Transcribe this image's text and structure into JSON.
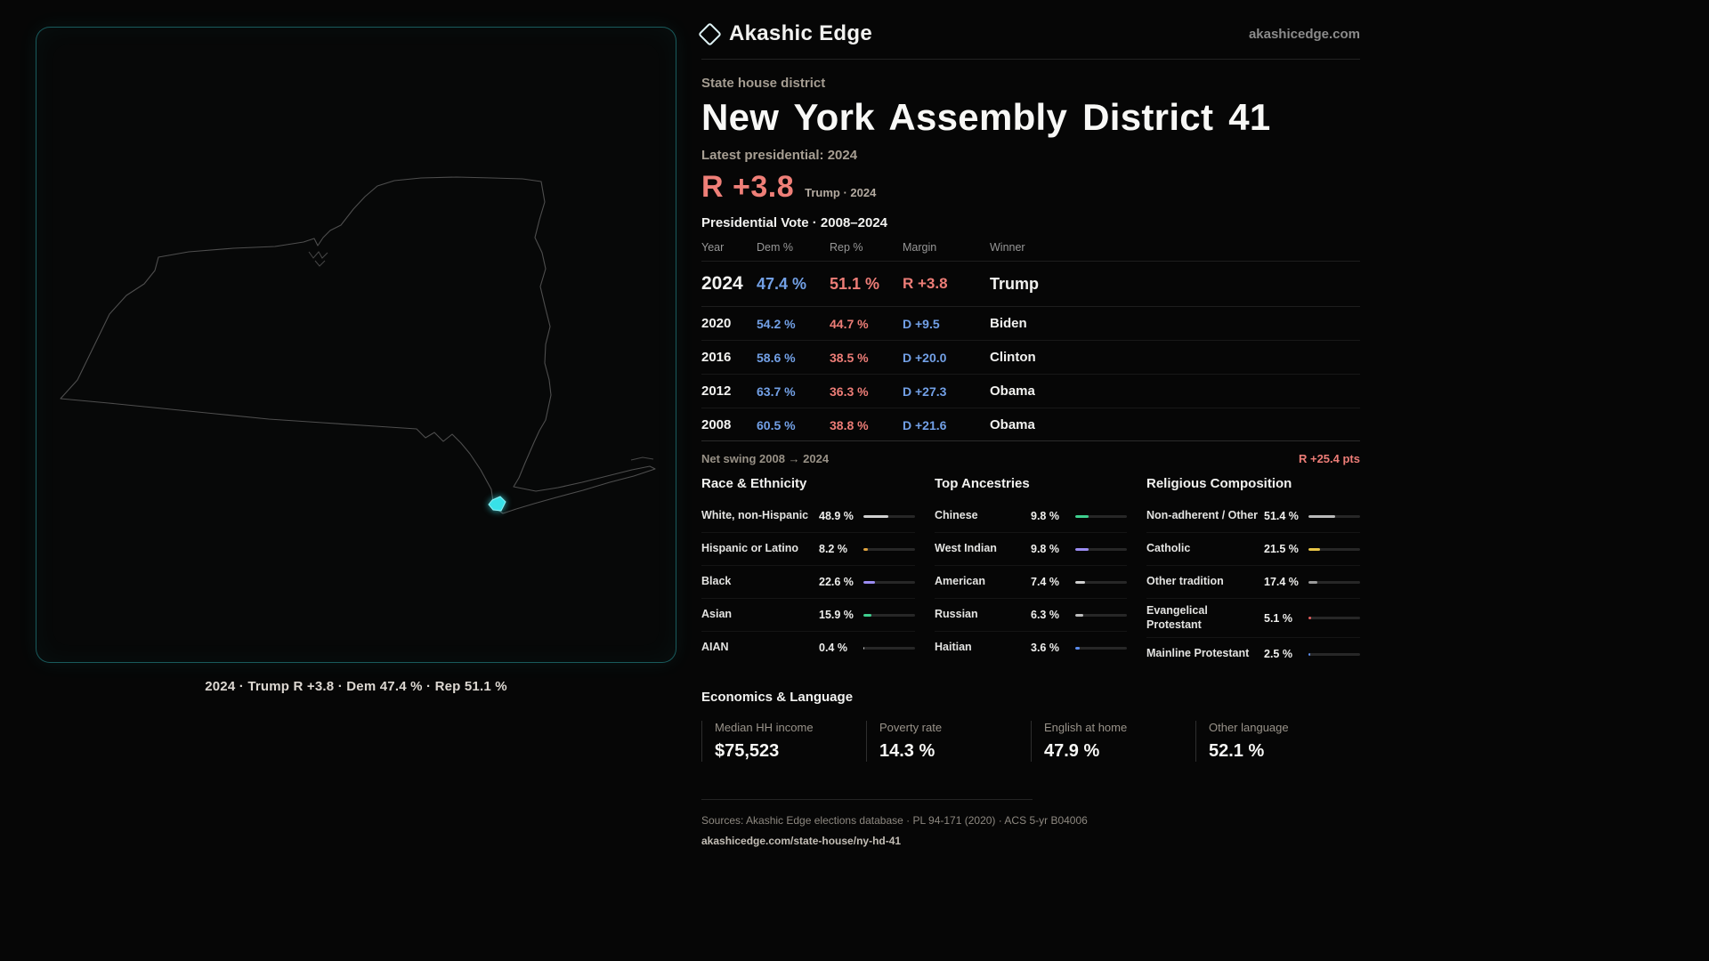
{
  "brand": {
    "name": "Akashic Edge",
    "domain": "akashicedge.com"
  },
  "map": {
    "caption": "2024 · Trump R +3.8 · Dem 47.4 % · Rep 51.1 %",
    "district_color": "#38e1e8"
  },
  "header": {
    "kicker": "State house district",
    "title": "New York Assembly District 41",
    "latest_label": "Latest presidential: 2024",
    "margin_big": "R +3.8",
    "margin_context": "Trump · 2024"
  },
  "colors": {
    "dem": "#72a0e6",
    "rep": "#ed7d77",
    "accent": "#38e1e8"
  },
  "vote_table": {
    "title": "Presidential Vote · 2008–2024",
    "columns": [
      "Year",
      "Dem %",
      "Rep %",
      "Margin",
      "Winner"
    ],
    "rows": [
      {
        "year": "2024",
        "dem": "47.4 %",
        "rep": "51.1 %",
        "margin": "R +3.8",
        "margin_side": "R",
        "winner": "Trump"
      },
      {
        "year": "2020",
        "dem": "54.2 %",
        "rep": "44.7 %",
        "margin": "D +9.5",
        "margin_side": "D",
        "winner": "Biden"
      },
      {
        "year": "2016",
        "dem": "58.6 %",
        "rep": "38.5 %",
        "margin": "D +20.0",
        "margin_side": "D",
        "winner": "Clinton"
      },
      {
        "year": "2012",
        "dem": "63.7 %",
        "rep": "36.3 %",
        "margin": "D +27.3",
        "margin_side": "D",
        "winner": "Obama"
      },
      {
        "year": "2008",
        "dem": "60.5 %",
        "rep": "38.8 %",
        "margin": "D +21.6",
        "margin_side": "D",
        "winner": "Obama"
      }
    ]
  },
  "net_swing": {
    "label": "Net swing 2008 → 2024",
    "value": "R +25.4 pts"
  },
  "demographics": [
    {
      "title": "Race & Ethnicity",
      "rows": [
        {
          "label": "White, non-Hispanic",
          "value": "48.9 %",
          "color": "#cfcfcf",
          "fill": 49
        },
        {
          "label": "Hispanic or Latino",
          "value": "8.2 %",
          "color": "#e0a33e",
          "fill": 8
        },
        {
          "label": "Black",
          "value": "22.6 %",
          "color": "#9b8cf2",
          "fill": 23
        },
        {
          "label": "Asian",
          "value": "15.9 %",
          "color": "#3ecf8e",
          "fill": 16
        },
        {
          "label": "AIAN",
          "value": "0.4 %",
          "color": "#cfcfcf",
          "fill": 1
        }
      ]
    },
    {
      "title": "Top Ancestries",
      "rows": [
        {
          "label": "Chinese",
          "value": "9.8 %",
          "color": "#3ecf8e",
          "fill": 25
        },
        {
          "label": "West Indian",
          "value": "9.8 %",
          "color": "#9b8cf2",
          "fill": 25
        },
        {
          "label": "American",
          "value": "7.4 %",
          "color": "#cfcfcf",
          "fill": 19
        },
        {
          "label": "Russian",
          "value": "6.3 %",
          "color": "#bdbdbd",
          "fill": 16
        },
        {
          "label": "Haitian",
          "value": "3.6 %",
          "color": "#5b8def",
          "fill": 9
        }
      ]
    },
    {
      "title": "Religious Composition",
      "rows": [
        {
          "label": "Non-adherent / Other",
          "value": "51.4 %",
          "color": "#b9b9b9",
          "fill": 51
        },
        {
          "label": "Catholic",
          "value": "21.5 %",
          "color": "#e8c547",
          "fill": 22
        },
        {
          "label": "Other tradition",
          "value": "17.4 %",
          "color": "#9a9a9a",
          "fill": 17
        },
        {
          "label": "Evangelical Protestant",
          "value": "5.1 %",
          "color": "#e85d5d",
          "fill": 5
        },
        {
          "label": "Mainline Protestant",
          "value": "2.5 %",
          "color": "#5b8def",
          "fill": 3
        }
      ]
    }
  ],
  "economics": {
    "title": "Economics & Language",
    "stats": [
      {
        "label": "Median HH income",
        "value": "$75,523"
      },
      {
        "label": "Poverty rate",
        "value": "14.3 %"
      },
      {
        "label": "English at home",
        "value": "47.9 %"
      },
      {
        "label": "Other language",
        "value": "52.1 %"
      }
    ]
  },
  "footer": {
    "sources": "Sources: Akashic Edge elections database · PL 94-171 (2020) · ACS 5-yr B04006",
    "permalink": "akashicedge.com/state-house/ny-hd-41"
  }
}
